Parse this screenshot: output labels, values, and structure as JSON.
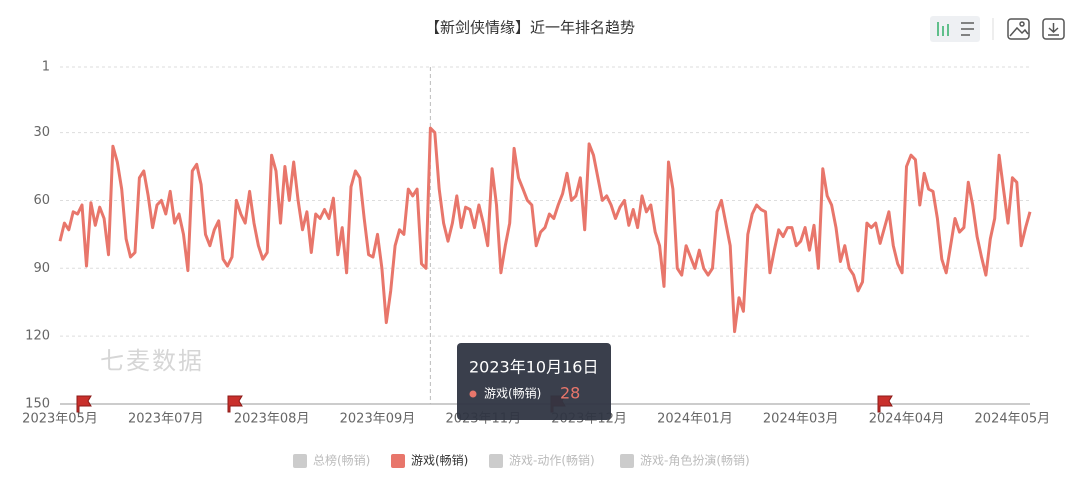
{
  "chart_data": {
    "type": "line",
    "title": "【新剑侠情缘】近一年排名趋势",
    "watermark": "七麦数据",
    "categories": [
      "2023年05月",
      null,
      null,
      null,
      null,
      null,
      null,
      null,
      null,
      null,
      null,
      null,
      null,
      null,
      null,
      null,
      null,
      null,
      null,
      null,
      null,
      null,
      null,
      null,
      "2023年07月",
      null,
      null,
      null,
      null,
      null,
      null,
      null,
      null,
      null,
      null,
      null,
      null,
      null,
      null,
      null,
      null,
      null,
      null,
      null,
      null,
      null,
      null,
      null,
      "2023年08月",
      null,
      null,
      null,
      null,
      null,
      null,
      null,
      null,
      null,
      null,
      null,
      null,
      null,
      null,
      null,
      null,
      null,
      null,
      null,
      null,
      null,
      null,
      null,
      "2023年09月",
      null,
      null,
      null,
      null,
      null,
      null,
      null,
      null,
      null,
      null,
      null,
      null,
      null,
      null,
      null,
      null,
      null,
      null,
      null,
      null,
      null,
      null,
      null,
      "2023年11月",
      null,
      null,
      null,
      null,
      null,
      null,
      null,
      null,
      null,
      null,
      null,
      null,
      null,
      null,
      null,
      null,
      null,
      null,
      null,
      null,
      null,
      null,
      null,
      "2023年12月",
      null,
      null,
      null,
      null,
      null,
      null,
      null,
      null,
      null,
      null,
      null,
      null,
      null,
      null,
      null,
      null,
      null,
      null,
      null,
      null,
      null,
      null,
      null,
      "2024年01月",
      null,
      null,
      null,
      null,
      null,
      null,
      null,
      null,
      null,
      null,
      null,
      null,
      null,
      null,
      null,
      null,
      null,
      null,
      null,
      null,
      null,
      null,
      null,
      "2024年03月",
      null,
      null,
      null,
      null,
      null,
      null,
      null,
      null,
      null,
      null,
      null,
      null,
      null,
      null,
      null,
      null,
      null,
      null,
      null,
      null,
      null,
      null,
      null,
      "2024年04月",
      null,
      null,
      null,
      null,
      null,
      null,
      null,
      null,
      null,
      null,
      null,
      null,
      null,
      null,
      null,
      null,
      null,
      null,
      null,
      null,
      null,
      null,
      null,
      "2024年05月",
      null,
      null,
      null,
      null
    ],
    "series": [
      {
        "name": "游戏(畅销)",
        "color": "#e8766b",
        "values": [
          78,
          70,
          73,
          65,
          66,
          62,
          89,
          61,
          71,
          63,
          68,
          84,
          36,
          43,
          55,
          77,
          85,
          83,
          50,
          47,
          58,
          72,
          62,
          60,
          66,
          56,
          70,
          66,
          75,
          91,
          47,
          44,
          53,
          75,
          80,
          73,
          69,
          86,
          89,
          85,
          60,
          66,
          70,
          56,
          70,
          80,
          86,
          83,
          40,
          47,
          70,
          45,
          60,
          43,
          60,
          73,
          65,
          83,
          66,
          68,
          64,
          68,
          59,
          84,
          72,
          92,
          54,
          47,
          50,
          68,
          84,
          85,
          75,
          90,
          114,
          100,
          80,
          73,
          75,
          55,
          58,
          55,
          88,
          90,
          28,
          30,
          55,
          70,
          78,
          70,
          58,
          72,
          63,
          64,
          72,
          62,
          70,
          80,
          46,
          62,
          92,
          80,
          70,
          37,
          50,
          55,
          60,
          62,
          80,
          74,
          72,
          66,
          68,
          62,
          57,
          48,
          60,
          58,
          50,
          73,
          35,
          40,
          50,
          60,
          58,
          62,
          68,
          63,
          60,
          71,
          64,
          72,
          58,
          65,
          62,
          74,
          80,
          98,
          43,
          55,
          90,
          93,
          80,
          85,
          90,
          82,
          90,
          93,
          90,
          65,
          60,
          70,
          80,
          118,
          103,
          109,
          75,
          66,
          62,
          64,
          65,
          92,
          82,
          73,
          76,
          72,
          72,
          80,
          78,
          72,
          82,
          71,
          90,
          46,
          58,
          62,
          72,
          87,
          80,
          90,
          93,
          100,
          96,
          70,
          72,
          70,
          79,
          72,
          65,
          80,
          88,
          92,
          45,
          40,
          42,
          62,
          48,
          55,
          56,
          68,
          86,
          92,
          80,
          68,
          74,
          72,
          52,
          62,
          76,
          85,
          93,
          77,
          68,
          40,
          55,
          70,
          50,
          52,
          80,
          72,
          65
        ]
      }
    ],
    "inactive_series": [
      "总榜(畅销)",
      "游戏-动作(畅销)",
      "游戏-角色扮演(畅销)"
    ],
    "inactive_color": "#cccccc",
    "ylim": [
      1,
      150
    ],
    "yticks": [
      1,
      30,
      60,
      90,
      120,
      150
    ],
    "y_inverse": true,
    "grid": true,
    "tooltip": {
      "title": "2023年10月16日"
    }
  }
}
